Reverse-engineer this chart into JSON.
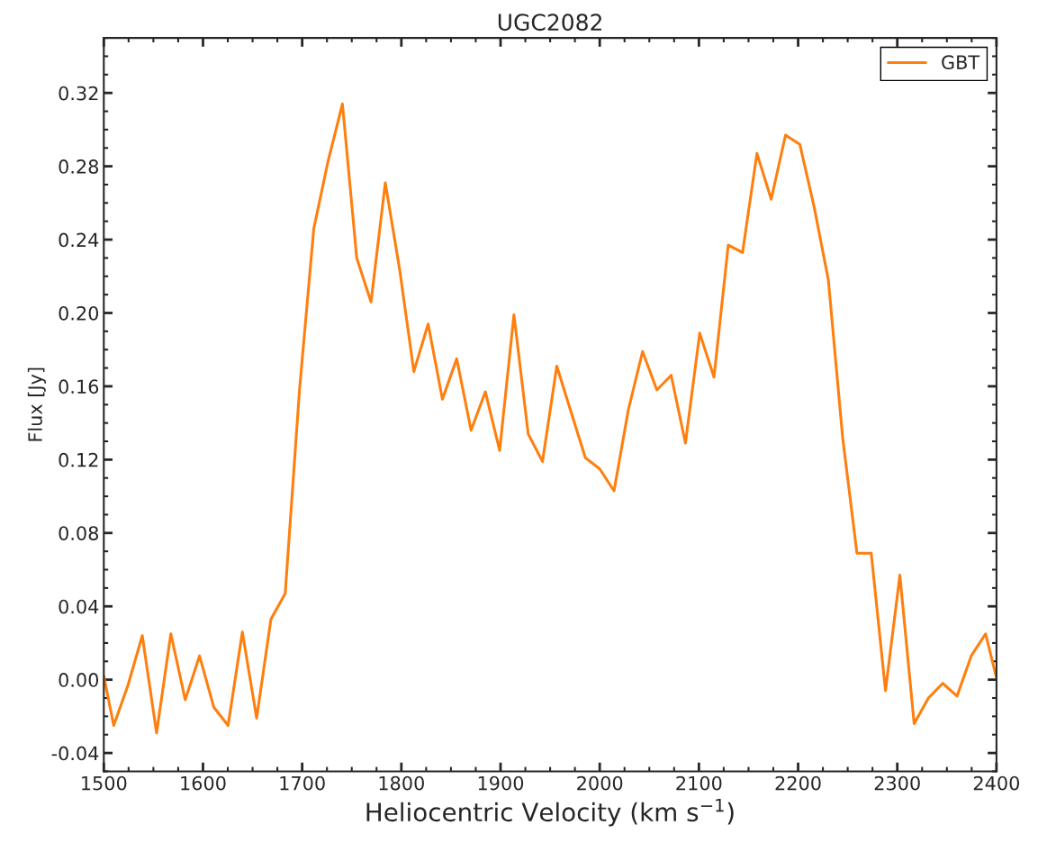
{
  "chart_data": {
    "type": "line",
    "title": "UGC2082",
    "xlabel": "Heliocentric Velocity (km s$^{−1}$)",
    "ylabel": "Flux [Jy]",
    "x": [
      1500,
      1510,
      1524.4,
      1538.8,
      1553.2,
      1567.6,
      1582.1,
      1596.5,
      1610.9,
      1625.3,
      1639.7,
      1654.1,
      1668.5,
      1682.9,
      1697.3,
      1711.7,
      1726.2,
      1740.6,
      1755.0,
      1769.4,
      1783.8,
      1798.2,
      1812.6,
      1827.0,
      1841.4,
      1855.8,
      1870.3,
      1884.7,
      1899.1,
      1913.5,
      1927.9,
      1942.3,
      1956.7,
      1971.1,
      1985.5,
      1999.9,
      2014.4,
      2028.8,
      2043.2,
      2057.6,
      2072.0,
      2086.4,
      2100.8,
      2115.2,
      2129.6,
      2144.0,
      2158.5,
      2172.9,
      2187.3,
      2201.7,
      2216.1,
      2230.5,
      2244.9,
      2259.3,
      2273.7,
      2288.1,
      2302.6,
      2317.0,
      2331.4,
      2345.8,
      2360.2,
      2374.6,
      2389.0,
      2400
    ],
    "series": [
      {
        "name": "GBT",
        "color": "#ff7f0e",
        "values": [
          0.002,
          -0.025,
          -0.003,
          0.024,
          -0.029,
          0.025,
          -0.011,
          0.013,
          -0.015,
          -0.025,
          0.026,
          -0.021,
          0.033,
          0.047,
          0.158,
          0.246,
          0.283,
          0.314,
          0.23,
          0.206,
          0.271,
          0.224,
          0.168,
          0.194,
          0.153,
          0.175,
          0.136,
          0.157,
          0.125,
          0.199,
          0.134,
          0.119,
          0.171,
          0.146,
          0.121,
          0.115,
          0.103,
          0.147,
          0.179,
          0.158,
          0.166,
          0.129,
          0.189,
          0.165,
          0.237,
          0.233,
          0.287,
          0.262,
          0.297,
          0.292,
          0.258,
          0.218,
          0.132,
          0.069,
          0.069,
          -0.006,
          0.057,
          -0.024,
          -0.01,
          -0.002,
          -0.009,
          0.013,
          0.025,
          0.001
        ]
      }
    ],
    "xlim": [
      1500,
      2400
    ],
    "xticks": [
      1500,
      1600,
      1700,
      1800,
      1900,
      2000,
      2100,
      2200,
      2300,
      2400
    ],
    "ylim": [
      -0.05,
      0.35
    ],
    "yticks": [
      {
        "value": -0.04,
        "label": "-0.04"
      },
      {
        "value": 0.0,
        "label": "0.00"
      },
      {
        "value": 0.04,
        "label": "0.04"
      },
      {
        "value": 0.08,
        "label": "0.08"
      },
      {
        "value": 0.12,
        "label": "0.12"
      },
      {
        "value": 0.16,
        "label": "0.16"
      },
      {
        "value": 0.2,
        "label": "0.20"
      },
      {
        "value": 0.24,
        "label": "0.24"
      },
      {
        "value": 0.28,
        "label": "0.28"
      },
      {
        "value": 0.32,
        "label": "0.32"
      }
    ],
    "legend": "top right",
    "grid": false,
    "marker": "none",
    "line_style": "solid"
  }
}
